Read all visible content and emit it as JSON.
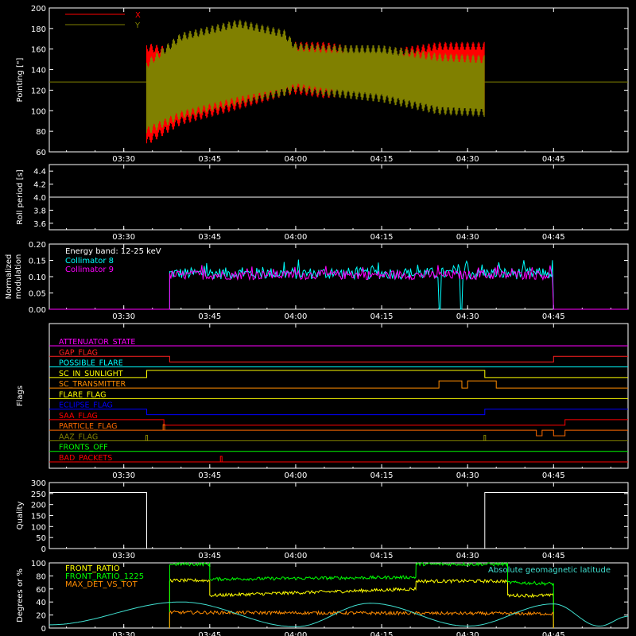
{
  "chart_data": [
    {
      "id": "pointing",
      "type": "line",
      "ylabel": "Pointing [\"]",
      "ylim": [
        60,
        200
      ],
      "yticks": [
        60,
        80,
        100,
        120,
        140,
        160,
        180,
        200
      ],
      "xtick_labels": [
        "03:30",
        "03:45",
        "04:00",
        "04:15",
        "04:30",
        "04:45"
      ],
      "legend": [
        {
          "name": "X",
          "color": "#ff0000"
        },
        {
          "name": "Y",
          "color": "#808000"
        }
      ],
      "baseline": 128,
      "series": [
        {
          "name": "X",
          "color": "#ff0000",
          "x": [
            "03:34",
            "03:40",
            "03:50",
            "03:58",
            "04:00",
            "04:05",
            "04:15",
            "04:25",
            "04:33"
          ],
          "ymax": [
            162,
            156,
            158,
            161,
            163,
            163,
            155,
            163,
            163
          ],
          "ymin": [
            70,
            90,
            105,
            118,
            120,
            116,
            120,
            112,
            100
          ]
        },
        {
          "name": "Y",
          "color": "#808000",
          "x": [
            "03:34",
            "03:40",
            "03:50",
            "03:58",
            "04:00",
            "04:05",
            "04:15",
            "04:25",
            "04:33"
          ],
          "ymax": [
            145,
            172,
            185,
            175,
            162,
            160,
            160,
            152,
            150
          ],
          "ymin": [
            80,
            96,
            110,
            118,
            123,
            118,
            112,
            100,
            98
          ]
        }
      ]
    },
    {
      "id": "roll",
      "type": "line",
      "ylabel": "Roll period [s]",
      "ylim": [
        3.5,
        4.5
      ],
      "yticks": [
        3.6,
        3.8,
        4.0,
        4.2,
        4.4
      ],
      "xtick_labels": [
        "03:30",
        "03:45",
        "04:00",
        "04:15",
        "04:30",
        "04:45"
      ],
      "series": [
        {
          "name": "",
          "color": "#ffffff",
          "x": [
            "03:17",
            "04:58"
          ],
          "y": [
            4.0,
            4.0
          ]
        }
      ]
    },
    {
      "id": "modulation",
      "type": "line",
      "ylabel": "Normalized modulation",
      "ylim": [
        0,
        0.2
      ],
      "yticks": [
        0.0,
        0.05,
        0.1,
        0.15,
        0.2
      ],
      "xtick_labels": [
        "03:30",
        "03:45",
        "04:00",
        "04:15",
        "04:30",
        "04:45"
      ],
      "legend_title": "Energy band: 12-25 keV",
      "series": [
        {
          "name": "Collimator 8",
          "color": "#00ffff",
          "start": "03:38",
          "end": "04:45",
          "mean": 0.11,
          "spread": 0.018,
          "gap": [
            "04:25",
            "04:29"
          ]
        },
        {
          "name": "Collimator 9",
          "color": "#ff00ff",
          "start": "03:38",
          "end": "04:45",
          "mean": 0.105,
          "spread": 0.014
        }
      ]
    },
    {
      "id": "flags",
      "type": "line",
      "ylabel": "Flags",
      "xtick_labels": [
        "03:30",
        "03:45",
        "04:00",
        "04:15",
        "04:30",
        "04:45"
      ],
      "flags": [
        {
          "name": "ATTENUATOR_STATE",
          "color": "#ff00ff",
          "steps": []
        },
        {
          "name": "GAP_FLAG",
          "color": "#ff2020",
          "steps": [
            [
              "03:38",
              "04:45",
              1
            ]
          ]
        },
        {
          "name": "POSSIBLE_FLARE",
          "color": "#00ffff",
          "steps": []
        },
        {
          "name": "SC_IN_SUNLIGHT",
          "color": "#ffff00",
          "steps": [
            [
              "03:34",
              "04:33",
              0
            ]
          ]
        },
        {
          "name": "SC_TRANSMITTER",
          "color": "#ff8c00",
          "steps": [
            [
              "04:25",
              "04:29",
              0
            ],
            [
              "04:30",
              "04:35",
              0
            ]
          ]
        },
        {
          "name": "FLARE_FLAG",
          "color": "#ffff00",
          "steps": []
        },
        {
          "name": "ECLIPSE_FLAG",
          "color": "#0000ff",
          "steps": [
            [
              "03:34",
              "04:33",
              1
            ]
          ]
        },
        {
          "name": "SAA_FLAG",
          "color": "#ff0000",
          "steps": [
            [
              "03:37",
              "04:47",
              1
            ]
          ]
        },
        {
          "name": "PARTICLE_FLAG",
          "color": "#ff6a00",
          "steps": [
            [
              "04:42",
              "04:43",
              1
            ],
            [
              "04:45",
              "04:47",
              1
            ]
          ],
          "spikes": [
            "03:37"
          ]
        },
        {
          "name": "AAZ_FLAG",
          "color": "#808000",
          "spikes": [
            "03:34",
            "04:33"
          ],
          "steps": []
        },
        {
          "name": "FRONTS_OFF",
          "color": "#00ff00",
          "steps": []
        },
        {
          "name": "BAD_PACKETS",
          "color": "#ff0000",
          "spikes": [
            "03:47"
          ],
          "steps": []
        }
      ]
    },
    {
      "id": "quality",
      "type": "line",
      "ylabel": "Quality",
      "ylim": [
        0,
        300
      ],
      "yticks": [
        0,
        50,
        100,
        150,
        200,
        250,
        300
      ],
      "xtick_labels": [
        "03:30",
        "03:45",
        "04:00",
        "04:15",
        "04:30",
        "04:45"
      ],
      "series": [
        {
          "name": "",
          "color": "#ffffff",
          "x": [
            "03:17",
            "03:34",
            "03:34",
            "04:33",
            "04:33",
            "04:58"
          ],
          "y": [
            255,
            255,
            0,
            0,
            255,
            255
          ]
        }
      ]
    },
    {
      "id": "ratios",
      "type": "line",
      "ylabel": "Degrees or %",
      "ylim": [
        0,
        100
      ],
      "yticks": [
        0,
        20,
        40,
        60,
        80,
        100
      ],
      "xtick_labels": [
        "03:30",
        "03:45",
        "04:00",
        "04:15",
        "04:30",
        "04:45"
      ],
      "series": [
        {
          "name": "FRONT_RATIO",
          "color": "#ffff00",
          "start": "03:38",
          "end": "04:45",
          "x": [
            "03:38",
            "03:45",
            "03:45",
            "04:21",
            "04:21",
            "04:37",
            "04:37",
            "04:45"
          ],
          "y": [
            73,
            73,
            50,
            60,
            72,
            72,
            50,
            50
          ]
        },
        {
          "name": "FRONT_RATIO_1225",
          "color": "#00ff00",
          "start": "03:38",
          "end": "04:45",
          "x": [
            "03:38",
            "03:45",
            "03:45",
            "04:21",
            "04:21",
            "04:37",
            "04:37",
            "04:45"
          ],
          "y": [
            98,
            98,
            75,
            78,
            98,
            98,
            70,
            68
          ]
        },
        {
          "name": "MAX_DET_VS_TOT",
          "color": "#ff8c00",
          "start": "03:38",
          "end": "04:45",
          "x": [
            "03:38",
            "04:45"
          ],
          "y": [
            24,
            22
          ]
        },
        {
          "name": "Absolute geomagnetic latitude",
          "color": "#40e0d0",
          "x": [
            "03:17",
            "03:40",
            "04:00",
            "04:13",
            "04:30",
            "04:45",
            "04:53",
            "04:58"
          ],
          "y": [
            5,
            40,
            2,
            38,
            3,
            37,
            3,
            18
          ]
        }
      ]
    }
  ]
}
